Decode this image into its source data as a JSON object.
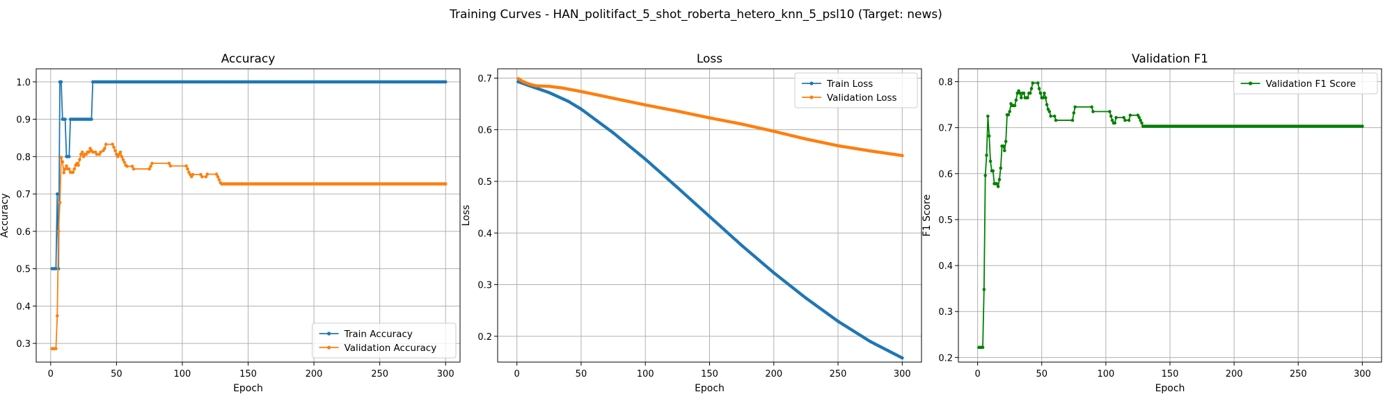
{
  "figure": {
    "title": "Training Curves - HAN_politifact_5_shot_roberta_hetero_knn_5_psl10 (Target: news)"
  },
  "chart_data": [
    {
      "type": "line",
      "title": "Accuracy",
      "xlabel": "Epoch",
      "ylabel": "Accuracy",
      "xlim": [
        -11,
        311
      ],
      "ylim": [
        0.25,
        1.035
      ],
      "xticks": [
        0,
        50,
        100,
        150,
        200,
        250,
        300
      ],
      "yticks": [
        0.3,
        0.4,
        0.5,
        0.6,
        0.7,
        0.8,
        0.9,
        1.0
      ],
      "ytick_format": "1",
      "grid": true,
      "legend_position": "lower-right",
      "series": [
        {
          "name": "Train Accuracy",
          "color": "#1f77b4",
          "points": [
            [
              1,
              0.5
            ],
            [
              2,
              0.5
            ],
            [
              3,
              0.5
            ],
            [
              4,
              0.5
            ],
            [
              5,
              0.7
            ],
            [
              6,
              0.5
            ],
            [
              7,
              1.0
            ],
            [
              8,
              1.0
            ],
            [
              9,
              0.9
            ],
            [
              10,
              0.9
            ],
            [
              11,
              0.9
            ],
            [
              12,
              0.8
            ],
            [
              13,
              0.8
            ],
            [
              14,
              0.8
            ],
            [
              15,
              0.9
            ],
            [
              16,
              0.9
            ],
            [
              17,
              0.9
            ],
            [
              18,
              0.9
            ],
            [
              19,
              0.9
            ],
            [
              20,
              0.9
            ],
            [
              21,
              0.9
            ],
            [
              22,
              0.9
            ],
            [
              23,
              0.9
            ],
            [
              24,
              0.9
            ],
            [
              25,
              0.9
            ],
            [
              26,
              0.9
            ],
            [
              27,
              0.9
            ],
            [
              28,
              0.9
            ],
            [
              29,
              0.9
            ],
            [
              30,
              0.9
            ],
            [
              31,
              0.9
            ],
            [
              32,
              1.0
            ],
            [
              300,
              1.0
            ]
          ],
          "mark_from": 32,
          "mark_to": 300
        },
        {
          "name": "Validation Accuracy",
          "color": "#ff7f0e",
          "points": [
            [
              1,
              0.286
            ],
            [
              2,
              0.286
            ],
            [
              3,
              0.286
            ],
            [
              4,
              0.286
            ],
            [
              5,
              0.374
            ],
            [
              6,
              0.6
            ],
            [
              7,
              0.677
            ],
            [
              8,
              0.798
            ],
            [
              9,
              0.786
            ],
            [
              10,
              0.757
            ],
            [
              11,
              0.767
            ],
            [
              12,
              0.775
            ],
            [
              13,
              0.767
            ],
            [
              14,
              0.767
            ],
            [
              15,
              0.758
            ],
            [
              16,
              0.758
            ],
            [
              17,
              0.758
            ],
            [
              18,
              0.767
            ],
            [
              19,
              0.777
            ],
            [
              20,
              0.782
            ],
            [
              21,
              0.777
            ],
            [
              22,
              0.792
            ],
            [
              23,
              0.806
            ],
            [
              24,
              0.812
            ],
            [
              25,
              0.8
            ],
            [
              26,
              0.806
            ],
            [
              27,
              0.806
            ],
            [
              28,
              0.812
            ],
            [
              29,
              0.812
            ],
            [
              30,
              0.822
            ],
            [
              31,
              0.816
            ],
            [
              32,
              0.812
            ],
            [
              34,
              0.812
            ],
            [
              35,
              0.806
            ],
            [
              37,
              0.806
            ],
            [
              38,
              0.812
            ],
            [
              40,
              0.816
            ],
            [
              41,
              0.822
            ],
            [
              42,
              0.833
            ],
            [
              47,
              0.833
            ],
            [
              48,
              0.825
            ],
            [
              49,
              0.816
            ],
            [
              50,
              0.806
            ],
            [
              51,
              0.8
            ],
            [
              52,
              0.806
            ],
            [
              53,
              0.812
            ],
            [
              54,
              0.8
            ],
            [
              55,
              0.792
            ],
            [
              56,
              0.785
            ],
            [
              57,
              0.777
            ],
            [
              58,
              0.774
            ],
            [
              62,
              0.774
            ],
            [
              63,
              0.767
            ],
            [
              75,
              0.767
            ],
            [
              76,
              0.774
            ],
            [
              77,
              0.782
            ],
            [
              90,
              0.782
            ],
            [
              91,
              0.775
            ],
            [
              103,
              0.775
            ],
            [
              104,
              0.767
            ],
            [
              105,
              0.758
            ],
            [
              106,
              0.752
            ],
            [
              107,
              0.746
            ],
            [
              108,
              0.752
            ],
            [
              114,
              0.752
            ],
            [
              115,
              0.746
            ],
            [
              118,
              0.746
            ],
            [
              119,
              0.753
            ],
            [
              126,
              0.753
            ],
            [
              127,
              0.746
            ],
            [
              128,
              0.738
            ],
            [
              129,
              0.73
            ],
            [
              130,
              0.727
            ],
            [
              300,
              0.727
            ]
          ],
          "mark_from": 130,
          "mark_to": 300
        }
      ]
    },
    {
      "type": "line",
      "title": "Loss",
      "xlabel": "Epoch",
      "ylabel": "Loss",
      "xlim": [
        -15,
        315
      ],
      "ylim": [
        0.15,
        0.718
      ],
      "xticks": [
        0,
        50,
        100,
        150,
        200,
        250,
        300
      ],
      "yticks": [
        0.2,
        0.3,
        0.4,
        0.5,
        0.6,
        0.7
      ],
      "ytick_format": "1",
      "grid": true,
      "legend_position": "upper-right",
      "series": [
        {
          "name": "Train Loss",
          "color": "#1f77b4",
          "points": [
            [
              1,
              0.693
            ],
            [
              10,
              0.685
            ],
            [
              25,
              0.672
            ],
            [
              40,
              0.655
            ],
            [
              50,
              0.64
            ],
            [
              75,
              0.594
            ],
            [
              100,
              0.543
            ],
            [
              125,
              0.488
            ],
            [
              150,
              0.432
            ],
            [
              175,
              0.376
            ],
            [
              200,
              0.323
            ],
            [
              225,
              0.274
            ],
            [
              250,
              0.229
            ],
            [
              275,
              0.19
            ],
            [
              300,
              0.158
            ]
          ],
          "mark_from": 1,
          "mark_to": 300
        },
        {
          "name": "Validation Loss",
          "color": "#ff7f0e",
          "points": [
            [
              1,
              0.699
            ],
            [
              5,
              0.693
            ],
            [
              10,
              0.688
            ],
            [
              15,
              0.685
            ],
            [
              25,
              0.684
            ],
            [
              35,
              0.681
            ],
            [
              50,
              0.674
            ],
            [
              75,
              0.661
            ],
            [
              100,
              0.648
            ],
            [
              125,
              0.636
            ],
            [
              150,
              0.623
            ],
            [
              175,
              0.611
            ],
            [
              200,
              0.597
            ],
            [
              225,
              0.582
            ],
            [
              250,
              0.569
            ],
            [
              275,
              0.559
            ],
            [
              300,
              0.55
            ]
          ],
          "mark_from": 1,
          "mark_to": 300
        }
      ]
    },
    {
      "type": "line",
      "title": "Validation F1",
      "xlabel": "Epoch",
      "ylabel": "F1 Score",
      "xlim": [
        -15,
        315
      ],
      "ylim": [
        0.19,
        0.828
      ],
      "xticks": [
        0,
        50,
        100,
        150,
        200,
        250,
        300
      ],
      "yticks": [
        0.2,
        0.3,
        0.4,
        0.5,
        0.6,
        0.7,
        0.8
      ],
      "ytick_format": "1",
      "grid": true,
      "legend_position": "upper-right",
      "series": [
        {
          "name": "Validation F1 Score",
          "color": "#008000",
          "points": [
            [
              1,
              0.222
            ],
            [
              2,
              0.222
            ],
            [
              3,
              0.222
            ],
            [
              4,
              0.222
            ],
            [
              5,
              0.348
            ],
            [
              6,
              0.596
            ],
            [
              7,
              0.64
            ],
            [
              8,
              0.725
            ],
            [
              9,
              0.682
            ],
            [
              10,
              0.627
            ],
            [
              11,
              0.606
            ],
            [
              12,
              0.606
            ],
            [
              13,
              0.578
            ],
            [
              14,
              0.578
            ],
            [
              15,
              0.578
            ],
            [
              16,
              0.572
            ],
            [
              17,
              0.587
            ],
            [
              18,
              0.612
            ],
            [
              19,
              0.66
            ],
            [
              20,
              0.66
            ],
            [
              21,
              0.65
            ],
            [
              22,
              0.67
            ],
            [
              23,
              0.728
            ],
            [
              24,
              0.728
            ],
            [
              25,
              0.735
            ],
            [
              26,
              0.752
            ],
            [
              27,
              0.748
            ],
            [
              28,
              0.748
            ],
            [
              29,
              0.748
            ],
            [
              30,
              0.76
            ],
            [
              31,
              0.775
            ],
            [
              32,
              0.78
            ],
            [
              33,
              0.775
            ],
            [
              34,
              0.765
            ],
            [
              35,
              0.775
            ],
            [
              36,
              0.775
            ],
            [
              37,
              0.765
            ],
            [
              38,
              0.765
            ],
            [
              39,
              0.765
            ],
            [
              40,
              0.775
            ],
            [
              41,
              0.775
            ],
            [
              42,
              0.785
            ],
            [
              43,
              0.797
            ],
            [
              47,
              0.797
            ],
            [
              48,
              0.785
            ],
            [
              49,
              0.775
            ],
            [
              50,
              0.765
            ],
            [
              51,
              0.765
            ],
            [
              52,
              0.775
            ],
            [
              53,
              0.765
            ],
            [
              54,
              0.75
            ],
            [
              55,
              0.74
            ],
            [
              56,
              0.735
            ],
            [
              57,
              0.725
            ],
            [
              60,
              0.725
            ],
            [
              61,
              0.716
            ],
            [
              74,
              0.716
            ],
            [
              75,
              0.732
            ],
            [
              76,
              0.745
            ],
            [
              89,
              0.745
            ],
            [
              90,
              0.735
            ],
            [
              103,
              0.735
            ],
            [
              104,
              0.725
            ],
            [
              105,
              0.716
            ],
            [
              106,
              0.71
            ],
            [
              107,
              0.71
            ],
            [
              108,
              0.722
            ],
            [
              114,
              0.722
            ],
            [
              115,
              0.716
            ],
            [
              118,
              0.716
            ],
            [
              119,
              0.727
            ],
            [
              125,
              0.727
            ],
            [
              126,
              0.722
            ],
            [
              127,
              0.716
            ],
            [
              128,
              0.71
            ],
            [
              129,
              0.703
            ],
            [
              300,
              0.703
            ]
          ],
          "mark_from": 129,
          "mark_to": 300
        }
      ]
    }
  ]
}
